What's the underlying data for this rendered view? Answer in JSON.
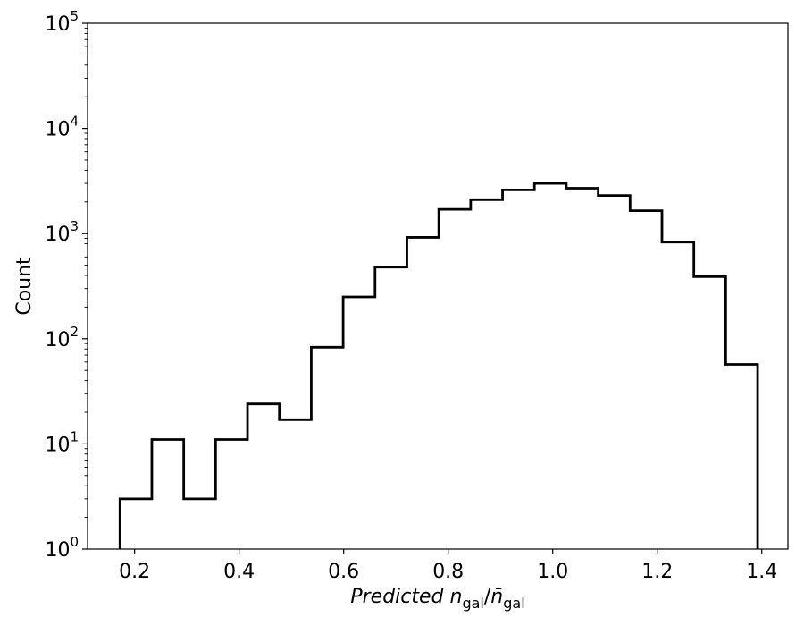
{
  "chart_data": {
    "type": "histogram",
    "yscale": "log",
    "xlabel": "Predicted n_gal/n̄_gal",
    "ylabel": "Count",
    "xlim": [
      0.11,
      1.45
    ],
    "ylim": [
      1,
      100000
    ],
    "grid": false,
    "step_color": "#000000",
    "x_ticks": [
      0.2,
      0.4,
      0.6,
      0.8,
      1.0,
      1.2,
      1.4
    ],
    "x_tick_labels": [
      "0.2",
      "0.4",
      "0.6",
      "0.8",
      "1.0",
      "1.2",
      "1.4"
    ],
    "y_ticks": [
      1,
      10,
      100,
      1000,
      10000,
      100000
    ],
    "y_tick_labels": [
      {
        "base": "10",
        "exp": "0"
      },
      {
        "base": "10",
        "exp": "1"
      },
      {
        "base": "10",
        "exp": "2"
      },
      {
        "base": "10",
        "exp": "3"
      },
      {
        "base": "10",
        "exp": "4"
      },
      {
        "base": "10",
        "exp": "5"
      }
    ],
    "bin_edges": [
      0.172,
      0.233,
      0.294,
      0.355,
      0.416,
      0.477,
      0.538,
      0.599,
      0.66,
      0.721,
      0.782,
      0.843,
      0.904,
      0.965,
      1.026,
      1.087,
      1.148,
      1.209,
      1.27,
      1.331,
      1.392
    ],
    "counts": [
      3,
      11,
      3,
      11,
      24,
      17,
      83,
      250,
      480,
      920,
      1700,
      2100,
      2600,
      3000,
      2700,
      2300,
      1650,
      830,
      390,
      57
    ]
  }
}
